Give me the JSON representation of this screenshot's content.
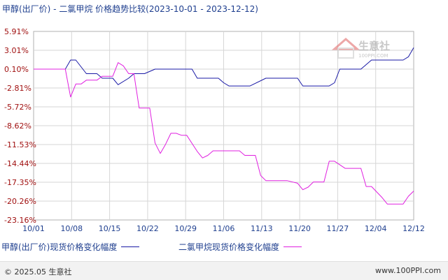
{
  "title": "甲醇(出厂价) - 二氯甲烷 价格趋势比较(2023-10-01 - 2023-12-12)",
  "watermark": {
    "name": "生意社",
    "url": "100PPI.COM"
  },
  "footer": {
    "copyright": "© 2025.05 生意社",
    "site": "www.100PPI.com"
  },
  "chart_data": {
    "type": "line",
    "title": "甲醇(出厂价) - 二氯甲烷 价格趋势比较(2023-10-01 - 2023-12-12)",
    "x_ticks": [
      "10/01",
      "10/08",
      "10/15",
      "10/22",
      "10/29",
      "11/06",
      "11/13",
      "11/20",
      "11/27",
      "12/04",
      "12/12"
    ],
    "x_range": [
      "2023-10-01",
      "2023-12-12"
    ],
    "y_ticks": [
      "5.91%",
      "3.01%",
      "0.10%",
      "-2.81%",
      "-5.72%",
      "-8.62%",
      "-11.53%",
      "-14.44%",
      "-17.35%",
      "-20.26%",
      "-23.16%"
    ],
    "ylim": [
      -23.16,
      5.91
    ],
    "grid": true,
    "legend_position": "bottom",
    "series": [
      {
        "name": "甲醇(出厂价)现货价格变化幅度",
        "color": "#1a1aa6",
        "points": [
          [
            "2023-10-01",
            0.1
          ],
          [
            "2023-10-07",
            0.1
          ],
          [
            "2023-10-08",
            1.5
          ],
          [
            "2023-10-09",
            1.5
          ],
          [
            "2023-10-11",
            -0.6
          ],
          [
            "2023-10-13",
            -0.6
          ],
          [
            "2023-10-14",
            -1.3
          ],
          [
            "2023-10-16",
            -1.3
          ],
          [
            "2023-10-17",
            -2.3
          ],
          [
            "2023-10-19",
            -1.3
          ],
          [
            "2023-10-20",
            -0.6
          ],
          [
            "2023-10-22",
            -0.6
          ],
          [
            "2023-10-24",
            0.1
          ],
          [
            "2023-10-31",
            0.1
          ],
          [
            "2023-11-01",
            -1.3
          ],
          [
            "2023-11-05",
            -1.3
          ],
          [
            "2023-11-06",
            -2.0
          ],
          [
            "2023-11-07",
            -2.5
          ],
          [
            "2023-11-11",
            -2.5
          ],
          [
            "2023-11-14",
            -1.3
          ],
          [
            "2023-11-20",
            -1.3
          ],
          [
            "2023-11-21",
            -2.5
          ],
          [
            "2023-11-26",
            -2.5
          ],
          [
            "2023-11-27",
            -2.0
          ],
          [
            "2023-11-28",
            0.1
          ],
          [
            "2023-12-02",
            0.1
          ],
          [
            "2023-12-04",
            1.5
          ],
          [
            "2023-12-10",
            1.5
          ],
          [
            "2023-12-11",
            2.0
          ],
          [
            "2023-12-12",
            3.4
          ]
        ]
      },
      {
        "name": "二氯甲烷现货价格变化幅度",
        "color": "#e020e0",
        "points": [
          [
            "2023-10-01",
            0.1
          ],
          [
            "2023-10-07",
            0.1
          ],
          [
            "2023-10-08",
            -4.2
          ],
          [
            "2023-10-09",
            -2.2
          ],
          [
            "2023-10-10",
            -2.2
          ],
          [
            "2023-10-11",
            -1.6
          ],
          [
            "2023-10-12",
            -1.6
          ],
          [
            "2023-10-13",
            -1.6
          ],
          [
            "2023-10-14",
            -1.0
          ],
          [
            "2023-10-15",
            -1.0
          ],
          [
            "2023-10-16",
            -1.0
          ],
          [
            "2023-10-17",
            1.1
          ],
          [
            "2023-10-18",
            0.6
          ],
          [
            "2023-10-19",
            -0.6
          ],
          [
            "2023-10-20",
            -0.6
          ],
          [
            "2023-10-21",
            -5.9
          ],
          [
            "2023-10-22",
            -5.9
          ],
          [
            "2023-10-23",
            -5.9
          ],
          [
            "2023-10-24",
            -11.3
          ],
          [
            "2023-10-25",
            -12.9
          ],
          [
            "2023-10-26",
            -11.5
          ],
          [
            "2023-10-27",
            -9.8
          ],
          [
            "2023-10-28",
            -9.8
          ],
          [
            "2023-10-29",
            -10.1
          ],
          [
            "2023-10-30",
            -10.1
          ],
          [
            "2023-11-01",
            -12.6
          ],
          [
            "2023-11-02",
            -13.6
          ],
          [
            "2023-11-03",
            -13.2
          ],
          [
            "2023-11-04",
            -12.5
          ],
          [
            "2023-11-08",
            -12.5
          ],
          [
            "2023-11-09",
            -12.5
          ],
          [
            "2023-11-10",
            -13.2
          ],
          [
            "2023-11-12",
            -13.2
          ],
          [
            "2023-11-13",
            -16.3
          ],
          [
            "2023-11-14",
            -17.1
          ],
          [
            "2023-11-18",
            -17.1
          ],
          [
            "2023-11-20",
            -17.5
          ],
          [
            "2023-11-21",
            -18.5
          ],
          [
            "2023-11-22",
            -18.1
          ],
          [
            "2023-11-23",
            -17.3
          ],
          [
            "2023-11-25",
            -17.3
          ],
          [
            "2023-11-26",
            -14.1
          ],
          [
            "2023-11-27",
            -14.1
          ],
          [
            "2023-11-29",
            -15.2
          ],
          [
            "2023-12-02",
            -15.2
          ],
          [
            "2023-12-03",
            -18.0
          ],
          [
            "2023-12-04",
            -18.0
          ],
          [
            "2023-12-06",
            -19.7
          ],
          [
            "2023-12-07",
            -20.7
          ],
          [
            "2023-12-10",
            -20.7
          ],
          [
            "2023-12-11",
            -19.5
          ],
          [
            "2023-12-12",
            -18.7
          ]
        ]
      }
    ]
  }
}
